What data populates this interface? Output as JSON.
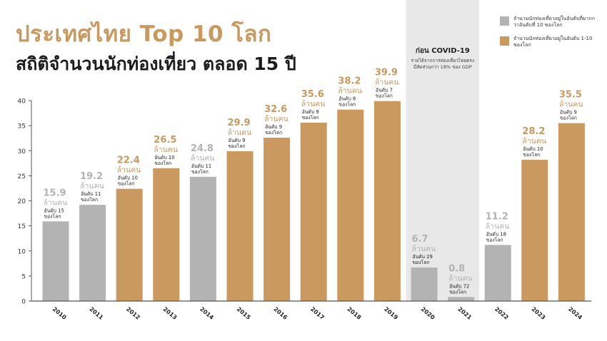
{
  "header": {
    "title_line1": "ประเทศไทย Top 10 โลก",
    "title_line2": "สถิติจำนวนนักท่องเที่ยว ตลอด 15 ปี"
  },
  "legend": {
    "gray_label": "จำนวนนักท่องเที่ยวอยู่ในอันดับที่มากกว่าอันดับที่ 10 ของโลก",
    "gold_label": "จำนวนนักท่องเที่ยวอยู่ในอันดับ 1-10 ของโลก"
  },
  "covid": {
    "title": "ก่อน COVID-19",
    "note": "รายได้จากการท่องเที่ยวไทยตรงมีสัดส่วนกว่า 18% ของ GDP"
  },
  "colors": {
    "gold": "#c9995f",
    "gray": "#b3b3b3",
    "covid_band": "#e8e8e8",
    "axis": "#555555",
    "grid": "#dddddd"
  },
  "chart_data": {
    "type": "bar",
    "categories": [
      "2010",
      "2011",
      "2012",
      "2013",
      "2014",
      "2015",
      "2016",
      "2017",
      "2018",
      "2019",
      "2020",
      "2021",
      "2022",
      "2023",
      "2024"
    ],
    "values": [
      15.9,
      19.2,
      22.4,
      26.5,
      24.8,
      29.9,
      32.6,
      35.6,
      38.2,
      39.9,
      6.7,
      0.8,
      11.2,
      28.2,
      35.5
    ],
    "value_labels": [
      "15.9",
      "19.2",
      "22.4",
      "26.5",
      "24.8",
      "29.9",
      "32.6",
      "35.6",
      "38.2",
      "39.9",
      "6.7",
      "0.8",
      "11.2",
      "28.2",
      "35.5"
    ],
    "unit_label": "ล้านคน",
    "rank_labels": [
      [
        "อันดับ 15",
        "ของโลก"
      ],
      [
        "อันดับ 11",
        "ของโลก"
      ],
      [
        "อันดับ 10",
        "ของโลก"
      ],
      [
        "อันดับ 10",
        "ของโลก"
      ],
      [
        "อันดับ 11",
        "ของโลก"
      ],
      [
        "อันดับ 9",
        "ของโลก"
      ],
      [
        "อันดับ 9",
        "ของโลก"
      ],
      [
        "อันดับ 9",
        "ของโลก"
      ],
      [
        "อันดับ 8",
        "ของโลก"
      ],
      [
        "อันดับ 7",
        "ของโลก"
      ],
      [
        "อันดับ 29",
        "ของโลก"
      ],
      [
        "อันดับ 72",
        "ของโลก"
      ],
      [
        "อันดับ 18",
        "ของโลก"
      ],
      [
        "อันดับ 10",
        "ของโลก"
      ],
      [
        "อันดับ 9",
        "ของโลก"
      ]
    ],
    "in_top10": [
      false,
      false,
      true,
      true,
      false,
      true,
      true,
      true,
      true,
      true,
      false,
      false,
      false,
      true,
      true
    ],
    "ylim": [
      0,
      40
    ],
    "yticks": [
      0,
      5,
      10,
      15,
      20,
      25,
      30,
      35,
      40
    ],
    "grid": false,
    "legend_position": "top-right",
    "xlabel": "",
    "ylabel": ""
  }
}
